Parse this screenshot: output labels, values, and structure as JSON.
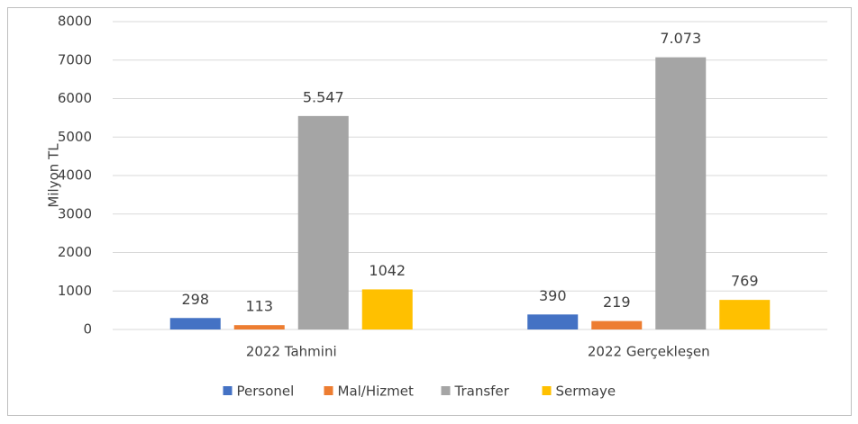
{
  "chart_data": {
    "type": "bar",
    "y_label": "Milyon TL",
    "categories": [
      "2022 Tahmini",
      "2022 Gerçekleşen"
    ],
    "series": [
      {
        "name": "Personel",
        "color": "#4472c4",
        "values": [
          298,
          390
        ]
      },
      {
        "name": "Mal/Hizmet",
        "color": "#ed7d31",
        "values": [
          113,
          219
        ]
      },
      {
        "name": "Transfer",
        "color": "#a5a5a5",
        "values": [
          5547,
          7073
        ],
        "value_labels": [
          "5.547",
          "7.073"
        ]
      },
      {
        "name": "Sermaye",
        "color": "#ffc000",
        "values": [
          1042,
          769
        ]
      }
    ],
    "ylim": [
      0,
      8000
    ],
    "yticks": [
      0,
      1000,
      2000,
      3000,
      4000,
      5000,
      6000,
      7000,
      8000
    ],
    "grid": true,
    "legend": "bottom"
  }
}
